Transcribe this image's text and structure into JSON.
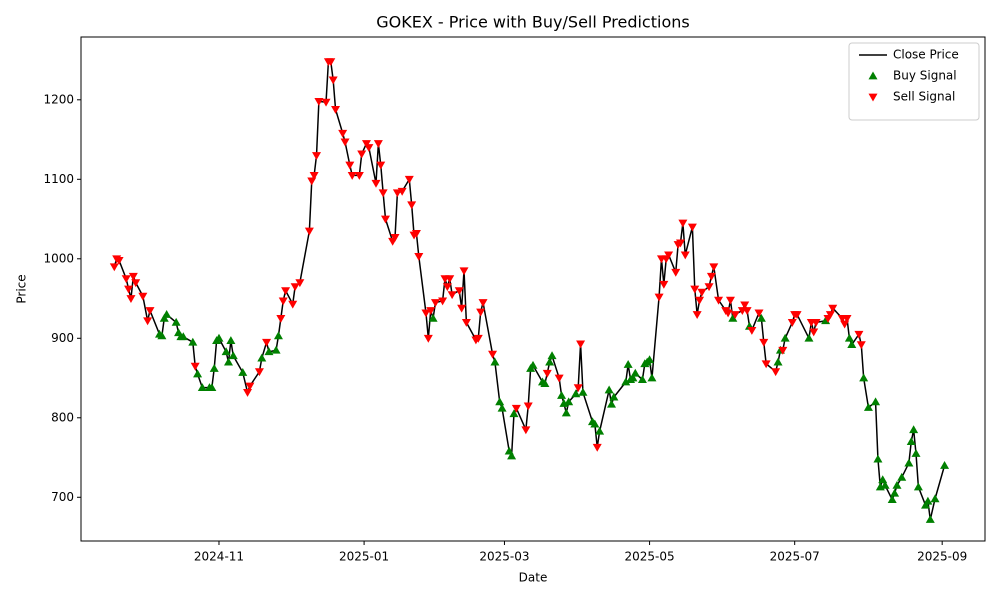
{
  "chart_data": {
    "type": "line",
    "title": "GOKEX - Price with Buy/Sell Predictions",
    "x_label": "Date",
    "y_label": "Price",
    "legend": "upper right",
    "xlim": [
      "2024-09-04",
      "2025-09-19"
    ],
    "xticks": [
      {
        "value": "2024-11-01",
        "label": "2024-11"
      },
      {
        "value": "2025-01-01",
        "label": "2025-01"
      },
      {
        "value": "2025-03-01",
        "label": "2025-03"
      },
      {
        "value": "2025-05-01",
        "label": "2025-05"
      },
      {
        "value": "2025-07-01",
        "label": "2025-07"
      },
      {
        "value": "2025-09-01",
        "label": "2025-09"
      }
    ],
    "ylim": [
      645,
      1279
    ],
    "yticks": [
      700,
      800,
      900,
      1000,
      1100,
      1200
    ],
    "series": [
      {
        "name": "Close Price",
        "color": "#000000",
        "mark": "line",
        "x": [
          "2024-09-18",
          "2024-09-19",
          "2024-09-20",
          "2024-09-23",
          "2024-09-24",
          "2024-09-25",
          "2024-09-26",
          "2024-09-27",
          "2024-09-30",
          "2024-10-02",
          "2024-10-03",
          "2024-10-07",
          "2024-10-08",
          "2024-10-09",
          "2024-10-10",
          "2024-10-14",
          "2024-10-15",
          "2024-10-16",
          "2024-10-17",
          "2024-10-21",
          "2024-10-22",
          "2024-10-23",
          "2024-10-25",
          "2024-10-28",
          "2024-10-29",
          "2024-10-30",
          "2024-10-31",
          "2024-11-01",
          "2024-11-04",
          "2024-11-05",
          "2024-11-06",
          "2024-11-07",
          "2024-11-11",
          "2024-11-13",
          "2024-11-14",
          "2024-11-18",
          "2024-11-19",
          "2024-11-21",
          "2024-11-22",
          "2024-11-25",
          "2024-11-26",
          "2024-11-27",
          "2024-11-28",
          "2024-11-29",
          "2024-12-02",
          "2024-12-03",
          "2024-12-05",
          "2024-12-09",
          "2024-12-10",
          "2024-12-11",
          "2024-12-12",
          "2024-12-13",
          "2024-12-16",
          "2024-12-17",
          "2024-12-18",
          "2024-12-19",
          "2024-12-20",
          "2024-12-23",
          "2024-12-24",
          "2024-12-26",
          "2024-12-27",
          "2024-12-30",
          "2024-12-31",
          "2025-01-02",
          "2025-01-03",
          "2025-01-06",
          "2025-01-07",
          "2025-01-08",
          "2025-01-09",
          "2025-01-10",
          "2025-01-13",
          "2025-01-14",
          "2025-01-15",
          "2025-01-17",
          "2025-01-20",
          "2025-01-21",
          "2025-01-22",
          "2025-01-23",
          "2025-01-24",
          "2025-01-27",
          "2025-01-28",
          "2025-01-29",
          "2025-01-30",
          "2025-01-31",
          "2025-02-03",
          "2025-02-04",
          "2025-02-05",
          "2025-02-06",
          "2025-02-07",
          "2025-02-10",
          "2025-02-11",
          "2025-02-12",
          "2025-02-13",
          "2025-02-17",
          "2025-02-18",
          "2025-02-19",
          "2025-02-20",
          "2025-02-24",
          "2025-02-25",
          "2025-02-27",
          "2025-02-28",
          "2025-03-03",
          "2025-03-04",
          "2025-03-05",
          "2025-03-06",
          "2025-03-10",
          "2025-03-11",
          "2025-03-12",
          "2025-03-13",
          "2025-03-17",
          "2025-03-18",
          "2025-03-19",
          "2025-03-20",
          "2025-03-21",
          "2025-03-24",
          "2025-03-25",
          "2025-03-26",
          "2025-03-27",
          "2025-03-28",
          "2025-03-31",
          "2025-04-01",
          "2025-04-02",
          "2025-04-03",
          "2025-04-07",
          "2025-04-08",
          "2025-04-09",
          "2025-04-10",
          "2025-04-14",
          "2025-04-15",
          "2025-04-16",
          "2025-04-21",
          "2025-04-22",
          "2025-04-23",
          "2025-04-24",
          "2025-04-25",
          "2025-04-28",
          "2025-04-29",
          "2025-04-30",
          "2025-05-01",
          "2025-05-02",
          "2025-05-05",
          "2025-05-06",
          "2025-05-07",
          "2025-05-08",
          "2025-05-09",
          "2025-05-12",
          "2025-05-13",
          "2025-05-14",
          "2025-05-15",
          "2025-05-16",
          "2025-05-19",
          "2025-05-20",
          "2025-05-21",
          "2025-05-22",
          "2025-05-23",
          "2025-05-26",
          "2025-05-27",
          "2025-05-28",
          "2025-05-30",
          "2025-06-02",
          "2025-06-03",
          "2025-06-04",
          "2025-06-05",
          "2025-06-06",
          "2025-06-09",
          "2025-06-10",
          "2025-06-11",
          "2025-06-12",
          "2025-06-13",
          "2025-06-16",
          "2025-06-17",
          "2025-06-18",
          "2025-06-19",
          "2025-06-23",
          "2025-06-24",
          "2025-06-25",
          "2025-06-26",
          "2025-06-27",
          "2025-06-30",
          "2025-07-01",
          "2025-07-02",
          "2025-07-07",
          "2025-07-08",
          "2025-07-09",
          "2025-07-10",
          "2025-07-14",
          "2025-07-15",
          "2025-07-16",
          "2025-07-17",
          "2025-07-21",
          "2025-07-22",
          "2025-07-23",
          "2025-07-24",
          "2025-07-25",
          "2025-07-28",
          "2025-07-29",
          "2025-07-30",
          "2025-08-01",
          "2025-08-04",
          "2025-08-05",
          "2025-08-06",
          "2025-08-07",
          "2025-08-08",
          "2025-08-11",
          "2025-08-12",
          "2025-08-13",
          "2025-08-15",
          "2025-08-18",
          "2025-08-19",
          "2025-08-20",
          "2025-08-21",
          "2025-08-22",
          "2025-08-25",
          "2025-08-26",
          "2025-08-27",
          "2025-08-29",
          "2025-09-02"
        ],
        "values": [
          990,
          1000,
          998,
          975,
          962,
          950,
          978,
          970,
          953,
          922,
          935,
          905,
          903,
          925,
          930,
          920,
          907,
          902,
          902,
          895,
          865,
          855,
          838,
          838,
          838,
          862,
          897,
          900,
          883,
          870,
          897,
          878,
          857,
          832,
          840,
          858,
          875,
          895,
          883,
          885,
          903,
          925,
          947,
          960,
          943,
          965,
          970,
          1035,
          1098,
          1105,
          1130,
          1198,
          1197,
          1248,
          1248,
          1225,
          1188,
          1158,
          1147,
          1118,
          1105,
          1105,
          1132,
          1145,
          1140,
          1095,
          1145,
          1118,
          1083,
          1050,
          1022,
          1027,
          1083,
          1085,
          1100,
          1068,
          1030,
          1032,
          1003,
          932,
          900,
          935,
          925,
          945,
          947,
          975,
          965,
          975,
          955,
          960,
          938,
          985,
          920,
          898,
          900,
          933,
          945,
          880,
          870,
          820,
          812,
          758,
          752,
          805,
          812,
          785,
          815,
          862,
          866,
          845,
          843,
          856,
          870,
          878,
          850,
          828,
          818,
          806,
          820,
          830,
          838,
          893,
          832,
          795,
          792,
          763,
          783,
          835,
          817,
          826,
          845,
          867,
          848,
          850,
          856,
          848,
          868,
          870,
          873,
          850,
          952,
          1000,
          968,
          1000,
          1005,
          983,
          1018,
          1020,
          1045,
          1005,
          1040,
          962,
          930,
          948,
          958,
          965,
          978,
          990,
          948,
          935,
          932,
          948,
          925,
          930,
          935,
          942,
          935,
          915,
          910,
          932,
          925,
          895,
          868,
          858,
          870,
          885,
          885,
          900,
          920,
          930,
          930,
          900,
          920,
          908,
          920,
          922,
          925,
          930,
          938,
          925,
          918,
          925,
          900,
          892,
          905,
          892,
          850,
          813,
          820,
          748,
          713,
          722,
          715,
          697,
          705,
          715,
          725,
          743,
          770,
          785,
          755,
          713,
          690,
          695,
          672,
          698,
          740
        ]
      },
      {
        "name": "Buy Signal",
        "color": "#008000",
        "mark": "triangle-up",
        "x": [
          "2024-10-07",
          "2024-10-08",
          "2024-10-09",
          "2024-10-10",
          "2024-10-14",
          "2024-10-15",
          "2024-10-16",
          "2024-10-17",
          "2024-10-21",
          "2024-10-23",
          "2024-10-25",
          "2024-10-28",
          "2024-10-29",
          "2024-10-30",
          "2024-10-31",
          "2024-11-01",
          "2024-11-04",
          "2024-11-05",
          "2024-11-06",
          "2024-11-07",
          "2024-11-11",
          "2024-11-19",
          "2024-11-22",
          "2024-11-25",
          "2024-11-26",
          "2025-01-30",
          "2025-02-25",
          "2025-02-27",
          "2025-02-28",
          "2025-03-03",
          "2025-03-04",
          "2025-03-05",
          "2025-03-12",
          "2025-03-13",
          "2025-03-17",
          "2025-03-18",
          "2025-03-20",
          "2025-03-21",
          "2025-03-25",
          "2025-03-26",
          "2025-03-27",
          "2025-03-28",
          "2025-03-31",
          "2025-04-03",
          "2025-04-07",
          "2025-04-08",
          "2025-04-10",
          "2025-04-14",
          "2025-04-15",
          "2025-04-16",
          "2025-04-21",
          "2025-04-22",
          "2025-04-23",
          "2025-04-24",
          "2025-04-25",
          "2025-04-28",
          "2025-04-29",
          "2025-04-30",
          "2025-05-01",
          "2025-05-02",
          "2025-06-05",
          "2025-06-12",
          "2025-06-17",
          "2025-06-24",
          "2025-06-25",
          "2025-06-27",
          "2025-07-07",
          "2025-07-14",
          "2025-07-24",
          "2025-07-25",
          "2025-07-30",
          "2025-08-01",
          "2025-08-04",
          "2025-08-05",
          "2025-08-06",
          "2025-08-07",
          "2025-08-08",
          "2025-08-11",
          "2025-08-12",
          "2025-08-13",
          "2025-08-15",
          "2025-08-18",
          "2025-08-19",
          "2025-08-20",
          "2025-08-21",
          "2025-08-22",
          "2025-08-25",
          "2025-08-26",
          "2025-08-27",
          "2025-08-29",
          "2025-09-02"
        ],
        "values": [
          905,
          903,
          925,
          930,
          920,
          907,
          902,
          902,
          895,
          855,
          838,
          838,
          838,
          862,
          897,
          900,
          883,
          870,
          897,
          878,
          857,
          875,
          883,
          885,
          903,
          925,
          870,
          820,
          812,
          758,
          752,
          805,
          862,
          866,
          845,
          843,
          870,
          878,
          828,
          818,
          806,
          820,
          830,
          832,
          795,
          792,
          783,
          835,
          817,
          826,
          845,
          867,
          848,
          850,
          856,
          848,
          868,
          870,
          873,
          850,
          925,
          915,
          925,
          870,
          885,
          900,
          900,
          922,
          900,
          892,
          850,
          813,
          820,
          748,
          713,
          722,
          715,
          697,
          705,
          715,
          725,
          743,
          770,
          785,
          755,
          713,
          690,
          695,
          672,
          698,
          740
        ]
      },
      {
        "name": "Sell Signal",
        "color": "#ff0000",
        "mark": "triangle-down",
        "x": [
          "2024-09-18",
          "2024-09-19",
          "2024-09-20",
          "2024-09-23",
          "2024-09-24",
          "2024-09-25",
          "2024-09-26",
          "2024-09-27",
          "2024-09-30",
          "2024-10-02",
          "2024-10-03",
          "2024-10-22",
          "2024-11-13",
          "2024-11-14",
          "2024-11-18",
          "2024-11-21",
          "2024-11-27",
          "2024-11-28",
          "2024-11-29",
          "2024-12-02",
          "2024-12-03",
          "2024-12-05",
          "2024-12-09",
          "2024-12-10",
          "2024-12-11",
          "2024-12-12",
          "2024-12-13",
          "2024-12-16",
          "2024-12-17",
          "2024-12-18",
          "2024-12-19",
          "2024-12-20",
          "2024-12-23",
          "2024-12-24",
          "2024-12-26",
          "2024-12-27",
          "2024-12-30",
          "2024-12-31",
          "2025-01-02",
          "2025-01-03",
          "2025-01-06",
          "2025-01-07",
          "2025-01-08",
          "2025-01-09",
          "2025-01-10",
          "2025-01-13",
          "2025-01-14",
          "2025-01-15",
          "2025-01-17",
          "2025-01-20",
          "2025-01-21",
          "2025-01-22",
          "2025-01-23",
          "2025-01-24",
          "2025-01-27",
          "2025-01-28",
          "2025-01-29",
          "2025-01-31",
          "2025-02-03",
          "2025-02-04",
          "2025-02-05",
          "2025-02-06",
          "2025-02-07",
          "2025-02-10",
          "2025-02-11",
          "2025-02-12",
          "2025-02-13",
          "2025-02-17",
          "2025-02-18",
          "2025-02-19",
          "2025-02-20",
          "2025-02-24",
          "2025-03-06",
          "2025-03-10",
          "2025-03-11",
          "2025-03-19",
          "2025-03-24",
          "2025-04-01",
          "2025-04-02",
          "2025-04-09",
          "2025-05-05",
          "2025-05-06",
          "2025-05-07",
          "2025-05-08",
          "2025-05-09",
          "2025-05-12",
          "2025-05-13",
          "2025-05-14",
          "2025-05-15",
          "2025-05-16",
          "2025-05-19",
          "2025-05-20",
          "2025-05-21",
          "2025-05-22",
          "2025-05-23",
          "2025-05-26",
          "2025-05-27",
          "2025-05-28",
          "2025-05-30",
          "2025-06-02",
          "2025-06-03",
          "2025-06-04",
          "2025-06-06",
          "2025-06-09",
          "2025-06-10",
          "2025-06-11",
          "2025-06-13",
          "2025-06-16",
          "2025-06-18",
          "2025-06-19",
          "2025-06-23",
          "2025-06-26",
          "2025-06-30",
          "2025-07-01",
          "2025-07-02",
          "2025-07-08",
          "2025-07-09",
          "2025-07-10",
          "2025-07-15",
          "2025-07-16",
          "2025-07-17",
          "2025-07-21",
          "2025-07-22",
          "2025-07-23",
          "2025-07-28",
          "2025-07-29"
        ],
        "values": [
          990,
          1000,
          998,
          975,
          962,
          950,
          978,
          970,
          953,
          922,
          935,
          865,
          832,
          840,
          858,
          895,
          925,
          947,
          960,
          943,
          965,
          970,
          1035,
          1098,
          1105,
          1130,
          1198,
          1197,
          1248,
          1248,
          1225,
          1188,
          1158,
          1147,
          1118,
          1105,
          1105,
          1132,
          1145,
          1140,
          1095,
          1145,
          1118,
          1083,
          1050,
          1022,
          1027,
          1083,
          1085,
          1100,
          1068,
          1030,
          1032,
          1003,
          932,
          900,
          935,
          945,
          947,
          975,
          965,
          975,
          955,
          960,
          938,
          985,
          920,
          898,
          900,
          933,
          945,
          880,
          812,
          785,
          815,
          856,
          850,
          838,
          893,
          763,
          952,
          1000,
          968,
          1000,
          1005,
          983,
          1018,
          1020,
          1045,
          1005,
          1040,
          962,
          930,
          948,
          958,
          965,
          978,
          990,
          948,
          935,
          932,
          948,
          930,
          935,
          942,
          935,
          910,
          932,
          895,
          868,
          858,
          885,
          920,
          930,
          930,
          920,
          908,
          920,
          925,
          930,
          938,
          925,
          918,
          925,
          905,
          892
        ]
      }
    ]
  }
}
